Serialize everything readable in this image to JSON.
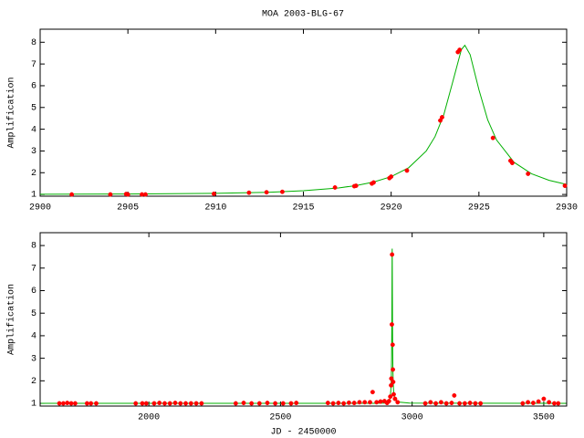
{
  "chart_data": [
    {
      "type": "line",
      "title": "MOA 2003-BLG-67",
      "ylabel": "Amplification",
      "xlim": [
        2900,
        2930
      ],
      "ylim": [
        0.92,
        8.6
      ],
      "xticks": [
        2900,
        2905,
        2910,
        2915,
        2920,
        2925,
        2930
      ],
      "yticks": [
        1,
        2,
        3,
        4,
        5,
        6,
        7,
        8
      ],
      "series": [
        {
          "color": "#00b000",
          "mode": "lines",
          "x": [
            2900,
            2905,
            2910,
            2913,
            2915,
            2917,
            2918,
            2919,
            2920,
            2921,
            2922,
            2922.5,
            2923,
            2923.5,
            2924,
            2924.2,
            2924.5,
            2925,
            2925.5,
            2926,
            2927,
            2928,
            2929,
            2930
          ],
          "values": [
            1.01,
            1.02,
            1.05,
            1.1,
            1.17,
            1.3,
            1.41,
            1.57,
            1.82,
            2.23,
            3.0,
            3.66,
            4.67,
            6.15,
            7.66,
            7.86,
            7.43,
            5.82,
            4.43,
            3.51,
            2.48,
            1.95,
            1.65,
            1.46
          ]
        },
        {
          "color": "#ff0000",
          "mode": "markers",
          "x": [
            2901.8,
            2904,
            2904.9,
            2905,
            2905.8,
            2906,
            2909.9,
            2911.9,
            2912.9,
            2913.8,
            2916.8,
            2917.9,
            2918,
            2918.9,
            2919,
            2919.9,
            2920,
            2920.9,
            2922.8,
            2922.9,
            2923.8,
            2923.9,
            2925.8,
            2926.8,
            2926.9,
            2927.8,
            2929.9
          ],
          "values": [
            1,
            1,
            1.02,
            1,
            1,
            1,
            1.03,
            1.08,
            1.1,
            1.12,
            1.32,
            1.38,
            1.4,
            1.5,
            1.55,
            1.75,
            1.82,
            2.1,
            4.4,
            4.55,
            7.55,
            7.65,
            3.6,
            2.55,
            2.45,
            1.95,
            1.4
          ]
        }
      ]
    },
    {
      "type": "line",
      "ylabel": "Amplification",
      "xlabel": "JD - 2450000",
      "xlim": [
        1587,
        3587
      ],
      "ylim": [
        0.88,
        8.57
      ],
      "xticks": [
        2000,
        2500,
        3000,
        3500
      ],
      "yticks": [
        1,
        2,
        3,
        4,
        5,
        6,
        7,
        8
      ],
      "series": [
        {
          "color": "#00b000",
          "mode": "lines",
          "x": [
            1590,
            2850,
            2900,
            2910,
            2915,
            2917,
            2919,
            2920,
            2921,
            2922,
            2923,
            2923.5,
            2924,
            2924.2,
            2924.5,
            2925,
            2925.5,
            2926,
            2927,
            2928,
            2930,
            2935,
            2945,
            2990,
            3585
          ],
          "values": [
            1,
            1,
            1.01,
            1.05,
            1.17,
            1.3,
            1.57,
            1.82,
            2.23,
            3.0,
            4.67,
            6.15,
            7.66,
            7.86,
            7.43,
            5.82,
            4.43,
            3.51,
            2.48,
            1.95,
            1.46,
            1.18,
            1.06,
            1.01,
            1
          ]
        },
        {
          "color": "#ff0000",
          "mode": "markers",
          "x": [
            1660,
            1675,
            1690,
            1705,
            1720,
            1765,
            1780,
            1800,
            1950,
            1975,
            1990,
            2020,
            2040,
            2060,
            2080,
            2100,
            2120,
            2140,
            2160,
            2180,
            2200,
            2330,
            2360,
            2390,
            2420,
            2450,
            2480,
            2510,
            2540,
            2560,
            2680,
            2700,
            2720,
            2740,
            2760,
            2780,
            2800,
            2820,
            2840,
            2850,
            2865,
            2880,
            2895,
            2905,
            2912,
            2917,
            2920,
            2921,
            2923,
            2923.8,
            2926,
            2927,
            2928,
            2930,
            2935,
            2945,
            3050,
            3070,
            3090,
            3110,
            3130,
            3150,
            3160,
            3180,
            3200,
            3220,
            3240,
            3260,
            3420,
            3440,
            3460,
            3480,
            3500,
            3520,
            3540,
            3555
          ],
          "values": [
            1,
            1,
            1.02,
            1,
            1,
            1,
            1,
            1,
            1,
            1,
            1,
            1,
            1.02,
            1,
            1,
            1.02,
            1,
            1,
            1,
            1,
            1,
            1,
            1.02,
            1,
            1,
            1.02,
            1,
            1,
            1,
            1.02,
            1.02,
            1,
            1.02,
            1,
            1.03,
            1.02,
            1.05,
            1.05,
            1.05,
            1.5,
            1.05,
            1.08,
            1.1,
            1.02,
            1.1,
            1.3,
            1.8,
            2.1,
            4.5,
            7.6,
            3.6,
            2.5,
            1.95,
            1.4,
            1.2,
            1.05,
            1,
            1.05,
            1,
            1.05,
            1,
            1.02,
            1.35,
            1,
            1,
            1.02,
            1,
            1,
            1,
            1.05,
            1.02,
            1.08,
            1.2,
            1.05,
            1,
            1.0
          ]
        }
      ]
    }
  ]
}
